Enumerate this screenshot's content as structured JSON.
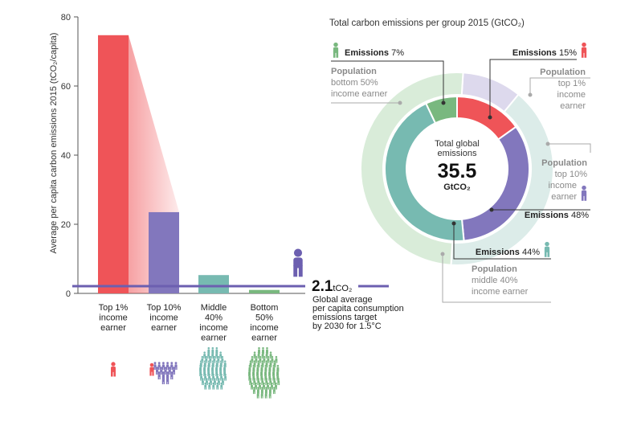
{
  "colors": {
    "top1": "#ef5458",
    "top10": "#8277bd",
    "middle40": "#77bab1",
    "bottom50": "#79b87f",
    "top1_pop": "#f7d0d2",
    "top10_pop": "#ddd9ed",
    "middle40_pop": "#dcece9",
    "bottom50_pop": "#d9ecd9",
    "target_line": "#6c5fb0",
    "axis": "#555555"
  },
  "chart_data": [
    {
      "type": "bar",
      "ylabel": "Average per capita carbon emissions 2015 (tCO₂/capita)",
      "ylim": [
        0,
        80
      ],
      "yticks": [
        0,
        20,
        40,
        60,
        80
      ],
      "categories": [
        [
          "Top 1%",
          "income",
          "earner"
        ],
        [
          "Top 10%",
          "income",
          "earner"
        ],
        [
          "Middle",
          "40%",
          "income",
          "earner"
        ],
        [
          "Bottom",
          "50%",
          "income",
          "earner"
        ]
      ],
      "values": [
        74.7,
        23.5,
        5.3,
        1.0
      ],
      "target": {
        "value": 2.1,
        "value_text": "2.1",
        "unit_text": "tCO₂",
        "label": [
          "Global average",
          "per capita consumption",
          "emissions target",
          "by 2030 for 1.5°C"
        ]
      }
    },
    {
      "type": "pie",
      "title": "Total carbon emissions per group 2015 (GtCO₂)",
      "center": {
        "line1": "Total global",
        "line2": "emissions",
        "value": "35.5",
        "unit": "GtCO₂"
      },
      "emissions": [
        {
          "group": "top1",
          "percent": 15
        },
        {
          "group": "top10",
          "percent": 48
        },
        {
          "group": "middle40",
          "percent": 44
        },
        {
          "group": "bottom50",
          "percent": 7
        }
      ],
      "population": [
        {
          "group": "top1",
          "percent": 1
        },
        {
          "group": "top10",
          "percent": 10
        },
        {
          "group": "middle40",
          "percent": 40
        },
        {
          "group": "bottom50",
          "percent": 50
        }
      ],
      "labels": {
        "emissions_word": "Emissions",
        "bottom50_emis": "7%",
        "top1_emis": "15%",
        "top10_emis": "48%",
        "middle40_emis": "44%",
        "population_word": "Population",
        "bottom50_pop": [
          "bottom 50%",
          "income earner"
        ],
        "top1_pop": [
          "top 1%",
          "income",
          "earner"
        ],
        "top10_pop": [
          "top 10%",
          "income",
          "earner"
        ],
        "middle40_pop": [
          "middle 40%",
          "income earner"
        ]
      }
    }
  ]
}
